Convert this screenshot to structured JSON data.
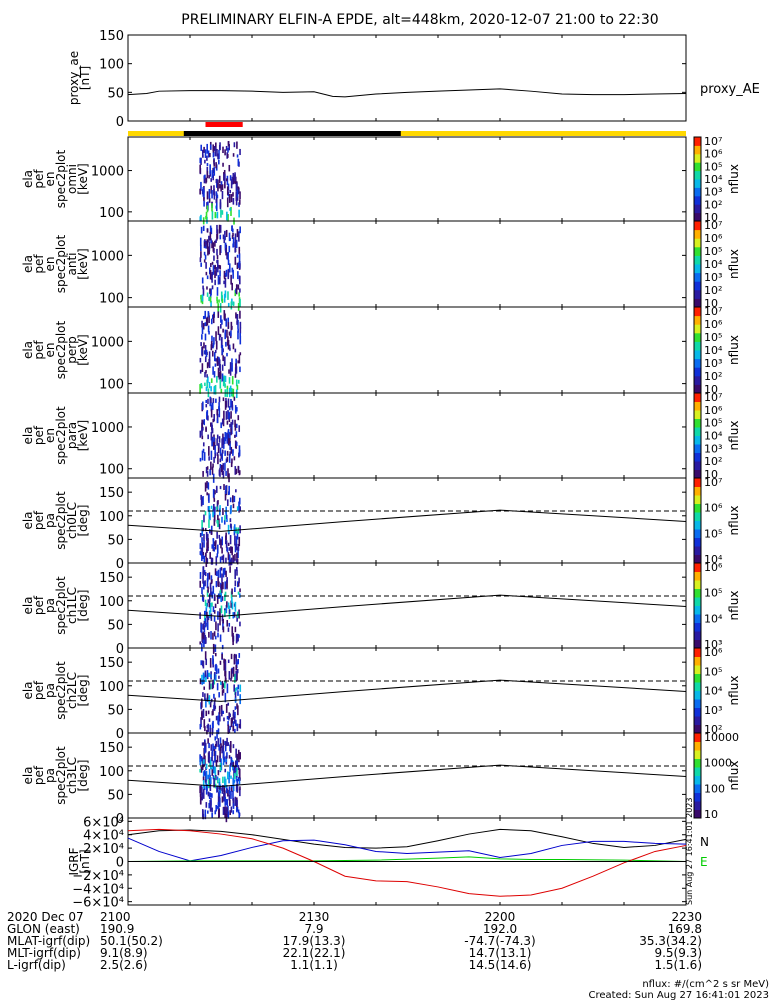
{
  "title": "PRELIMINARY ELFIN-A EPDE, alt=448km, 2020-12-07 21:00 to 22:30",
  "colors": {
    "flag_bar": "#ffd800",
    "eclipse_bar": "#000000",
    "science_bar": "#ff0000",
    "dashed_line": "#000000"
  },
  "chart_data": [
    {
      "id": "proxy_ae",
      "type": "line",
      "ylabel": [
        "proxy_ae",
        "[nT]"
      ],
      "ylim": [
        0,
        150
      ],
      "yticks": [
        "0",
        "50",
        "100",
        "150"
      ],
      "legend": "proxy_AE",
      "x_minutes": [
        0,
        3,
        5,
        10,
        15,
        20,
        25,
        30,
        33,
        35,
        40,
        45,
        50,
        55,
        60,
        65,
        70,
        75,
        80,
        85,
        90
      ],
      "values": [
        46,
        48,
        52,
        53,
        53,
        52,
        50,
        51,
        43,
        42,
        47,
        50,
        52,
        54,
        56,
        52,
        47,
        46,
        46,
        47,
        48
      ]
    },
    {
      "id": "omni",
      "type": "heatmap",
      "ylabel": [
        "ela",
        "pef",
        "en",
        "spec2plot",
        "omni",
        "[keV]"
      ],
      "yscale": "log",
      "ylim": [
        60,
        6500
      ],
      "yticks": [
        "100",
        "1000"
      ],
      "colorbar": {
        "label": "nflux",
        "ticks": [
          "10",
          "10²",
          "10³",
          "10⁴",
          "10⁵",
          "10⁶",
          "10⁷"
        ]
      }
    },
    {
      "id": "anti",
      "type": "heatmap",
      "ylabel": [
        "ela",
        "pef",
        "en",
        "spec2plot",
        "anti",
        "[keV]"
      ],
      "yscale": "log",
      "ylim": [
        60,
        6500
      ],
      "yticks": [
        "100",
        "1000"
      ],
      "colorbar": {
        "label": "nflux",
        "ticks": [
          "10",
          "10²",
          "10³",
          "10⁴",
          "10⁵",
          "10⁶",
          "10⁷"
        ]
      }
    },
    {
      "id": "perp",
      "type": "heatmap",
      "ylabel": [
        "ela",
        "pef",
        "en",
        "spec2plot",
        "perp",
        "[keV]"
      ],
      "yscale": "log",
      "ylim": [
        60,
        6500
      ],
      "yticks": [
        "100",
        "1000"
      ],
      "colorbar": {
        "label": "nflux",
        "ticks": [
          "10",
          "10²",
          "10³",
          "10⁴",
          "10⁵",
          "10⁶",
          "10⁷"
        ]
      }
    },
    {
      "id": "para",
      "type": "heatmap",
      "ylabel": [
        "ela",
        "pef",
        "en",
        "spec2plot",
        "para",
        "[keV]"
      ],
      "yscale": "log",
      "ylim": [
        60,
        6500
      ],
      "yticks": [
        "100",
        "1000"
      ],
      "colorbar": {
        "label": "nflux",
        "ticks": [
          "10",
          "10²",
          "10³",
          "10⁴",
          "10⁵",
          "10⁶",
          "10⁷"
        ]
      }
    },
    {
      "id": "ch0LC",
      "type": "heatmap",
      "ylabel": [
        "ela",
        "pef",
        "pa",
        "spec2plot",
        "ch0LC",
        "[deg]"
      ],
      "ylim": [
        0,
        180
      ],
      "yticks": [
        "0",
        "50",
        "100",
        "150"
      ],
      "dashed_y": 110,
      "colorbar": {
        "label": "nflux",
        "ticks": [
          "10⁴",
          "10⁵",
          "10⁶",
          "10⁷"
        ]
      }
    },
    {
      "id": "ch1LC",
      "type": "heatmap",
      "ylabel": [
        "ela",
        "pef",
        "pa",
        "spec2plot",
        "ch1LC",
        "[deg]"
      ],
      "ylim": [
        0,
        180
      ],
      "yticks": [
        "0",
        "50",
        "100",
        "150"
      ],
      "dashed_y": 110,
      "colorbar": {
        "label": "nflux",
        "ticks": [
          "10³",
          "10⁴",
          "10⁵",
          "10⁶"
        ]
      }
    },
    {
      "id": "ch2LC",
      "type": "heatmap",
      "ylabel": [
        "ela",
        "pef",
        "pa",
        "spec2plot",
        "ch2LC",
        "[deg]"
      ],
      "ylim": [
        0,
        180
      ],
      "yticks": [
        "0",
        "50",
        "100",
        "150"
      ],
      "dashed_y": 110,
      "colorbar": {
        "label": "nflux",
        "ticks": [
          "10²",
          "10³",
          "10⁴",
          "10⁵",
          "10⁶"
        ]
      }
    },
    {
      "id": "ch3LC",
      "type": "heatmap",
      "ylabel": [
        "ela",
        "pef",
        "pa",
        "spec2plot",
        "ch3LC",
        "[deg]"
      ],
      "ylim": [
        0,
        180
      ],
      "yticks": [
        "0",
        "50",
        "100",
        "150"
      ],
      "dashed_y": 110,
      "colorbar": {
        "label": "nflux",
        "ticks": [
          "10",
          "100",
          "1000",
          "10000"
        ]
      }
    },
    {
      "id": "igrf",
      "type": "line",
      "ylabel": [
        "IGRF",
        "[nT]"
      ],
      "ylim": [
        -65000,
        65000
      ],
      "yticks": [
        "−6×10⁴",
        "−4×10⁴",
        "−2×10⁴",
        "0",
        "2×10⁴",
        "4×10⁴",
        "6×10⁴"
      ],
      "legend": [
        "N",
        "E"
      ],
      "series": [
        {
          "name": "N",
          "color": "#000000",
          "x": [
            0,
            5,
            10,
            15,
            20,
            25,
            30,
            35,
            40,
            45,
            50,
            55,
            60,
            65,
            70,
            75,
            80,
            85,
            90
          ],
          "values": [
            40000,
            46000,
            47000,
            45000,
            40000,
            33000,
            26000,
            21000,
            20000,
            22000,
            31000,
            41000,
            48000,
            46000,
            37000,
            27000,
            21000,
            24000,
            33000
          ]
        },
        {
          "name": "",
          "color": "#0000cc",
          "x": [
            0,
            5,
            10,
            15,
            20,
            25,
            30,
            35,
            40,
            45,
            50,
            55,
            60,
            65,
            70,
            75,
            80,
            85,
            90
          ],
          "values": [
            35000,
            15000,
            1000,
            9000,
            21000,
            31000,
            32000,
            25000,
            15000,
            12000,
            14000,
            16000,
            6000,
            12000,
            24000,
            30000,
            30000,
            27000,
            26000
          ]
        },
        {
          "name": "E",
          "color": "#00cc00",
          "x": [
            0,
            10,
            20,
            30,
            40,
            50,
            55,
            60,
            65,
            70,
            80,
            90
          ],
          "values": [
            0,
            1000,
            1000,
            1000,
            2000,
            5000,
            7000,
            4000,
            3000,
            3000,
            2000,
            0
          ]
        },
        {
          "name": "",
          "color": "#dd0000",
          "x": [
            0,
            5,
            10,
            15,
            20,
            25,
            30,
            35,
            40,
            45,
            50,
            55,
            60,
            65,
            70,
            75,
            80,
            85,
            90
          ],
          "values": [
            46000,
            48000,
            46000,
            41000,
            34000,
            20000,
            0,
            -22000,
            -29000,
            -30000,
            -38000,
            -48000,
            -52000,
            -50000,
            -40000,
            -22000,
            -2000,
            15000,
            24000
          ]
        }
      ]
    }
  ],
  "sidebar_stamp": "Sun Aug 27 16:41:01 2023",
  "footer": {
    "rows": [
      {
        "label": "2020 Dec 07",
        "values": [
          "2100",
          "2130",
          "2200",
          "2230"
        ]
      },
      {
        "label": "GLON (east)",
        "values": [
          "190.9",
          "7.9",
          "192.0",
          "169.8"
        ]
      },
      {
        "label": "MLAT-igrf(dip)",
        "values": [
          "50.1(50.2)",
          "17.9(13.3)",
          "-74.7(-74.3)",
          "35.3(34.2)"
        ]
      },
      {
        "label": "MLT-igrf(dip)",
        "values": [
          "9.1(8.9)",
          "22.1(22.1)",
          "14.7(13.1)",
          "9.5(9.3)"
        ]
      },
      {
        "label": "L-igrf(dip)",
        "values": [
          "2.5(2.6)",
          "1.1(1.1)",
          "14.5(14.6)",
          "1.5(1.6)"
        ]
      }
    ],
    "nflux_note": "nflux: #/(cm^2 s sr MeV)",
    "created": "Created: Sun Aug 27 16:41:01 2023"
  }
}
